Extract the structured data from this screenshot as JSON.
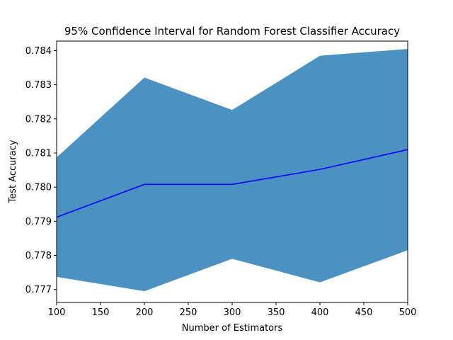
{
  "chart_data": {
    "type": "line",
    "title": "95% Confidence Interval for Random Forest Classifier Accuracy",
    "xlabel": "Number of Estimators",
    "ylabel": "Test Accuracy",
    "xlim": [
      100,
      500
    ],
    "ylim": [
      0.77662,
      0.78428
    ],
    "xticks": [
      100,
      150,
      200,
      250,
      300,
      350,
      400,
      450,
      500
    ],
    "xtick_labels": [
      "100",
      "150",
      "200",
      "250",
      "300",
      "350",
      "400",
      "450",
      "500"
    ],
    "yticks": [
      0.777,
      0.778,
      0.779,
      0.78,
      0.781,
      0.782,
      0.783,
      0.784
    ],
    "ytick_labels": [
      "0.777",
      "0.778",
      "0.779",
      "0.780",
      "0.781",
      "0.782",
      "0.783",
      "0.784"
    ],
    "grid": false,
    "x": [
      100,
      200,
      300,
      400,
      500
    ],
    "series": [
      {
        "values": [
          0.77912,
          0.78008,
          0.78008,
          0.78052,
          0.7811
        ],
        "lower": [
          0.77737,
          0.77695,
          0.7779,
          0.77721,
          0.77815
        ],
        "upper": [
          0.78087,
          0.78321,
          0.78226,
          0.78385,
          0.78405
        ]
      }
    ],
    "colors": {
      "line": "#0000ff",
      "band": "#4a92c2",
      "axes": "#000000"
    }
  }
}
